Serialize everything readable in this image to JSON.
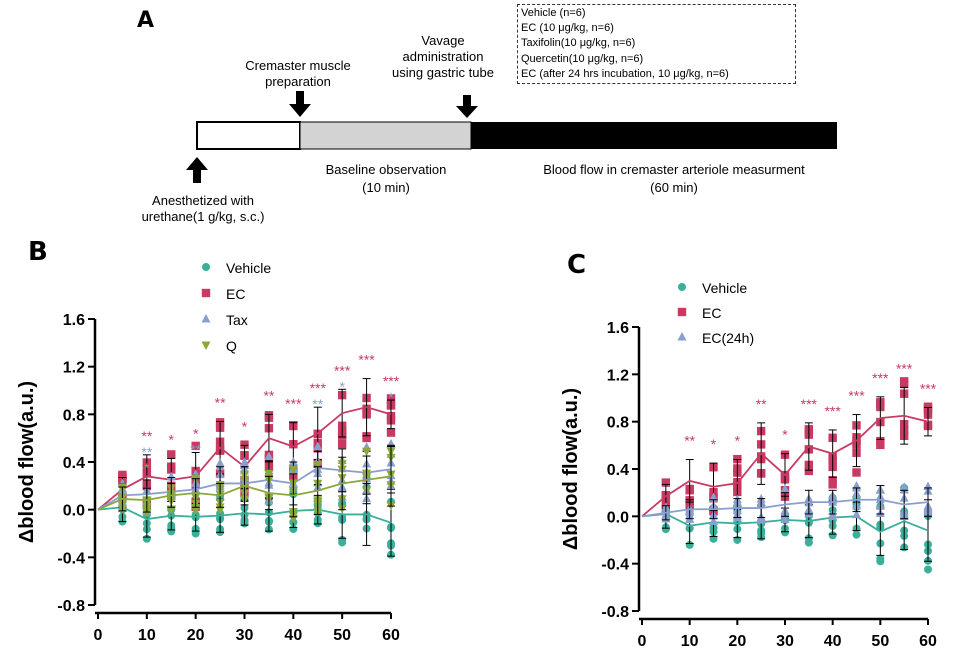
{
  "panel_a": {
    "label": "A",
    "groups": [
      "Vehicle (n=6)",
      "EC (10 μg/kg, n=6)",
      "Taxifolin(10 μg/kg, n=6)",
      "Quercetin(10 μg/kg, n=6)",
      "EC (after 24 hrs incubation, 10 μg/kg, n=6)"
    ],
    "step_cremaster": [
      "Cremaster muscle",
      "preparation"
    ],
    "step_vavage": [
      "Vavage",
      "administration",
      "using gastric tube"
    ],
    "step_anesth": [
      "Anesthetized with",
      "urethane(1 g/kg, s.c.)"
    ],
    "step_baseline": [
      "Baseline observation",
      "(10 min)"
    ],
    "step_bloodflow": [
      "Blood flow in cremaster arteriole measurment",
      "(60 min)"
    ]
  },
  "colors": {
    "vehicle": "#3aaf9a",
    "ec": "#c93a63",
    "tax": "#8a9fd0",
    "q": "#8ba83a"
  },
  "chart_data": [
    {
      "panel": "B",
      "type": "scatter",
      "ylabel": "Δblood flow(a.u.)",
      "x": [
        0,
        5,
        10,
        15,
        20,
        25,
        30,
        35,
        40,
        45,
        50,
        55,
        60
      ],
      "ylim": [
        -0.8,
        1.6
      ],
      "yticks": [
        "-0.8",
        "-0.4",
        "0.0",
        "0.4",
        "0.8",
        "1.2",
        "1.6"
      ],
      "xticks": [
        "0",
        "10",
        "20",
        "30",
        "40",
        "50",
        "60"
      ],
      "series": [
        {
          "name": "Vehicle",
          "key": "vehicle",
          "marker": "circle",
          "values": [
            0,
            0.02,
            -0.08,
            -0.05,
            -0.06,
            -0.05,
            -0.03,
            -0.04,
            -0.01,
            0.0,
            -0.04,
            -0.04,
            -0.11
          ],
          "errors": [
            0,
            0.12,
            0.15,
            0.12,
            0.12,
            0.14,
            0.1,
            0.14,
            0.14,
            0.12,
            0.2,
            0.26,
            0.28
          ]
        },
        {
          "name": "EC",
          "key": "ec",
          "marker": "square",
          "values": [
            0,
            0.17,
            0.28,
            0.25,
            0.28,
            0.52,
            0.36,
            0.6,
            0.53,
            0.64,
            0.81,
            0.86,
            0.8
          ],
          "errors": [
            0,
            0.1,
            0.18,
            0.18,
            0.2,
            0.22,
            0.18,
            0.2,
            0.2,
            0.22,
            0.2,
            0.24,
            0.12
          ]
        },
        {
          "name": "Tax",
          "key": "tax",
          "marker": "triangle-up",
          "values": [
            0,
            0.12,
            0.13,
            0.15,
            0.17,
            0.22,
            0.22,
            0.25,
            0.22,
            0.35,
            0.33,
            0.31,
            0.34
          ],
          "errors": [
            0,
            0.1,
            0.12,
            0.12,
            0.12,
            0.14,
            0.14,
            0.16,
            0.18,
            0.14,
            0.18,
            0.18,
            0.2
          ]
        },
        {
          "name": "Q",
          "key": "q",
          "marker": "triangle-down",
          "values": [
            0,
            0.09,
            0.08,
            0.12,
            0.14,
            0.12,
            0.2,
            0.14,
            0.12,
            0.16,
            0.22,
            0.25,
            0.28
          ],
          "errors": [
            0,
            0.1,
            0.1,
            0.1,
            0.12,
            0.1,
            0.16,
            0.14,
            0.18,
            0.2,
            0.22,
            0.2,
            0.25
          ]
        }
      ],
      "annotations": [
        {
          "x": 10,
          "lines": [
            [
              "**",
              "ec"
            ],
            [
              "**",
              "tax"
            ],
            [
              "*",
              "q"
            ]
          ]
        },
        {
          "x": 15,
          "lines": [
            [
              "*",
              "ec"
            ]
          ]
        },
        {
          "x": 20,
          "lines": [
            [
              "*",
              "ec"
            ],
            [
              "**",
              "tax"
            ]
          ]
        },
        {
          "x": 25,
          "lines": [
            [
              "**",
              "ec"
            ]
          ]
        },
        {
          "x": 30,
          "lines": [
            [
              "*",
              "ec"
            ]
          ]
        },
        {
          "x": 35,
          "lines": [
            [
              "**",
              "ec"
            ]
          ]
        },
        {
          "x": 40,
          "lines": [
            [
              "***",
              "ec"
            ]
          ]
        },
        {
          "x": 45,
          "lines": [
            [
              "***",
              "ec"
            ],
            [
              "**",
              "tax"
            ]
          ]
        },
        {
          "x": 50,
          "lines": [
            [
              "***",
              "ec"
            ],
            [
              "*",
              "tax"
            ]
          ]
        },
        {
          "x": 55,
          "lines": [
            [
              "***",
              "ec"
            ]
          ]
        },
        {
          "x": 60,
          "lines": [
            [
              "***",
              "ec"
            ],
            [
              "*",
              "tax"
            ]
          ]
        }
      ]
    },
    {
      "panel": "C",
      "type": "scatter",
      "ylabel": "Δblood flow(a.u.)",
      "x": [
        0,
        5,
        10,
        15,
        20,
        25,
        30,
        35,
        40,
        45,
        50,
        55,
        60
      ],
      "ylim": [
        -0.8,
        1.6
      ],
      "yticks": [
        "-0.8",
        "-0.4",
        "0.0",
        "0.4",
        "0.8",
        "1.2",
        "1.6"
      ],
      "xticks": [
        "0",
        "10",
        "20",
        "30",
        "40",
        "50",
        "60"
      ],
      "series": [
        {
          "name": "Vehicle",
          "key": "vehicle",
          "marker": "circle",
          "values": [
            0,
            0.02,
            -0.08,
            -0.05,
            -0.06,
            -0.05,
            -0.03,
            -0.04,
            -0.01,
            0.0,
            -0.13,
            -0.04,
            -0.12
          ],
          "errors": [
            0,
            0.12,
            0.15,
            0.12,
            0.12,
            0.14,
            0.1,
            0.14,
            0.14,
            0.12,
            0.2,
            0.24,
            0.26
          ]
        },
        {
          "name": "EC",
          "key": "ec",
          "marker": "square",
          "values": [
            0,
            0.17,
            0.3,
            0.25,
            0.28,
            0.53,
            0.35,
            0.59,
            0.53,
            0.64,
            0.83,
            0.85,
            0.8
          ],
          "errors": [
            0,
            0.1,
            0.18,
            0.2,
            0.2,
            0.26,
            0.18,
            0.2,
            0.2,
            0.22,
            0.18,
            0.24,
            0.12
          ]
        },
        {
          "name": "EC(24h)",
          "key": "tax",
          "marker": "triangle-up",
          "values": [
            0,
            0.03,
            0.06,
            0.06,
            0.07,
            0.07,
            0.1,
            0.12,
            0.12,
            0.14,
            0.14,
            0.1,
            0.12
          ],
          "errors": [
            0,
            0.06,
            0.08,
            0.08,
            0.08,
            0.08,
            0.1,
            0.1,
            0.1,
            0.1,
            0.12,
            0.12,
            0.12
          ]
        }
      ],
      "annotations": [
        {
          "x": 10,
          "lines": [
            [
              "**",
              "ec"
            ]
          ]
        },
        {
          "x": 15,
          "lines": [
            [
              "*",
              "ec"
            ]
          ]
        },
        {
          "x": 20,
          "lines": [
            [
              "*",
              "ec"
            ]
          ]
        },
        {
          "x": 25,
          "lines": [
            [
              "**",
              "ec"
            ]
          ]
        },
        {
          "x": 30,
          "lines": [
            [
              "*",
              "ec"
            ]
          ]
        },
        {
          "x": 35,
          "lines": [
            [
              "***",
              "ec"
            ]
          ]
        },
        {
          "x": 40,
          "lines": [
            [
              "***",
              "ec"
            ]
          ]
        },
        {
          "x": 45,
          "lines": [
            [
              "***",
              "ec"
            ]
          ]
        },
        {
          "x": 50,
          "lines": [
            [
              "***",
              "ec"
            ]
          ]
        },
        {
          "x": 55,
          "lines": [
            [
              "***",
              "ec"
            ]
          ]
        },
        {
          "x": 60,
          "lines": [
            [
              "***",
              "ec"
            ]
          ]
        }
      ]
    }
  ]
}
